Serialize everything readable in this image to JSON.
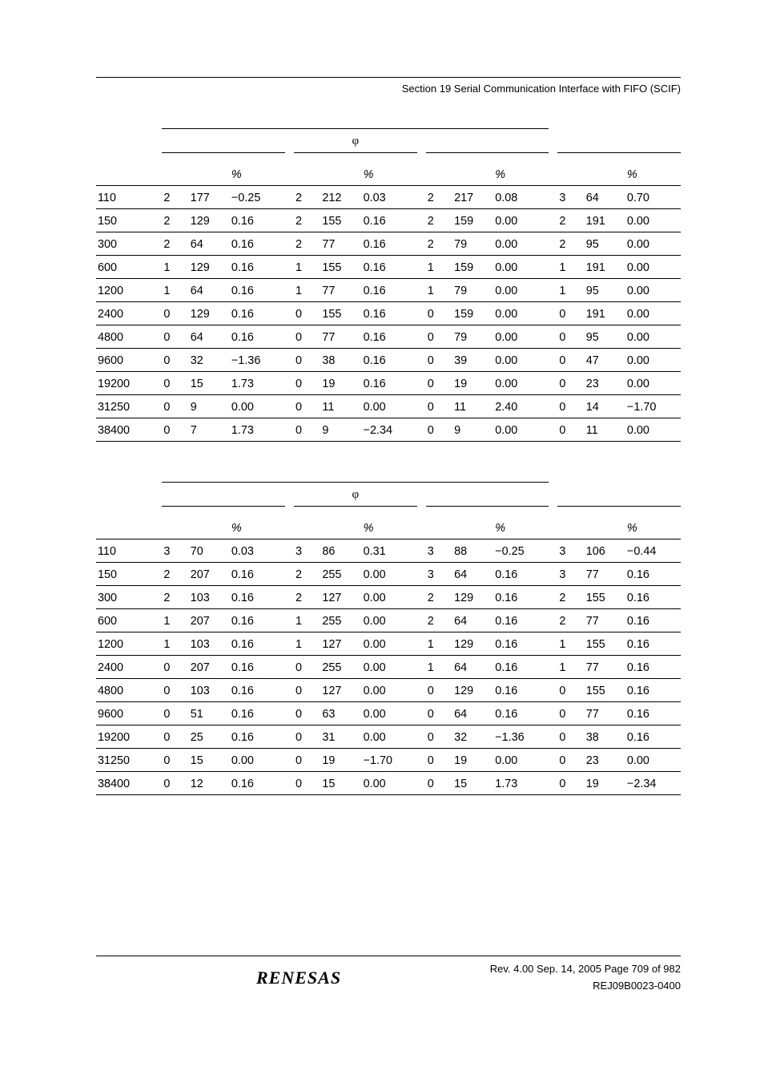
{
  "header": {
    "section_text": "Section 19   Serial Communication Interface with FIFO (SCIF)"
  },
  "symbols": {
    "phi": "φ",
    "percent": "%"
  },
  "table1": {
    "rows": [
      {
        "bit": "110",
        "n1": "2",
        "N1": "177",
        "p1": "−0.25",
        "n2": "2",
        "N2": "212",
        "p2": "0.03",
        "n3": "2",
        "N3": "217",
        "p3": "0.08",
        "n4": "3",
        "N4": "64",
        "p4": "0.70"
      },
      {
        "bit": "150",
        "n1": "2",
        "N1": "129",
        "p1": "0.16",
        "n2": "2",
        "N2": "155",
        "p2": "0.16",
        "n3": "2",
        "N3": "159",
        "p3": "0.00",
        "n4": "2",
        "N4": "191",
        "p4": "0.00"
      },
      {
        "bit": "300",
        "n1": "2",
        "N1": "64",
        "p1": "0.16",
        "n2": "2",
        "N2": "77",
        "p2": "0.16",
        "n3": "2",
        "N3": "79",
        "p3": "0.00",
        "n4": "2",
        "N4": "95",
        "p4": "0.00"
      },
      {
        "bit": "600",
        "n1": "1",
        "N1": "129",
        "p1": "0.16",
        "n2": "1",
        "N2": "155",
        "p2": "0.16",
        "n3": "1",
        "N3": "159",
        "p3": "0.00",
        "n4": "1",
        "N4": "191",
        "p4": "0.00"
      },
      {
        "bit": "1200",
        "n1": "1",
        "N1": "64",
        "p1": "0.16",
        "n2": "1",
        "N2": "77",
        "p2": "0.16",
        "n3": "1",
        "N3": "79",
        "p3": "0.00",
        "n4": "1",
        "N4": "95",
        "p4": "0.00"
      },
      {
        "bit": "2400",
        "n1": "0",
        "N1": "129",
        "p1": "0.16",
        "n2": "0",
        "N2": "155",
        "p2": "0.16",
        "n3": "0",
        "N3": "159",
        "p3": "0.00",
        "n4": "0",
        "N4": "191",
        "p4": "0.00"
      },
      {
        "bit": "4800",
        "n1": "0",
        "N1": "64",
        "p1": "0.16",
        "n2": "0",
        "N2": "77",
        "p2": "0.16",
        "n3": "0",
        "N3": "79",
        "p3": "0.00",
        "n4": "0",
        "N4": "95",
        "p4": "0.00"
      },
      {
        "bit": "9600",
        "n1": "0",
        "N1": "32",
        "p1": "−1.36",
        "n2": "0",
        "N2": "38",
        "p2": "0.16",
        "n3": "0",
        "N3": "39",
        "p3": "0.00",
        "n4": "0",
        "N4": "47",
        "p4": "0.00"
      },
      {
        "bit": "19200",
        "n1": "0",
        "N1": "15",
        "p1": "1.73",
        "n2": "0",
        "N2": "19",
        "p2": "0.16",
        "n3": "0",
        "N3": "19",
        "p3": "0.00",
        "n4": "0",
        "N4": "23",
        "p4": "0.00"
      },
      {
        "bit": "31250",
        "n1": "0",
        "N1": "9",
        "p1": "0.00",
        "n2": "0",
        "N2": "11",
        "p2": "0.00",
        "n3": "0",
        "N3": "11",
        "p3": "2.40",
        "n4": "0",
        "N4": "14",
        "p4": "−1.70"
      },
      {
        "bit": "38400",
        "n1": "0",
        "N1": "7",
        "p1": "1.73",
        "n2": "0",
        "N2": "9",
        "p2": "−2.34",
        "n3": "0",
        "N3": "9",
        "p3": "0.00",
        "n4": "0",
        "N4": "11",
        "p4": "0.00"
      }
    ]
  },
  "table2": {
    "rows": [
      {
        "bit": "110",
        "n1": "3",
        "N1": "70",
        "p1": "0.03",
        "n2": "3",
        "N2": "86",
        "p2": "0.31",
        "n3": "3",
        "N3": "88",
        "p3": "−0.25",
        "n4": "3",
        "N4": "106",
        "p4": "−0.44"
      },
      {
        "bit": "150",
        "n1": "2",
        "N1": "207",
        "p1": "0.16",
        "n2": "2",
        "N2": "255",
        "p2": "0.00",
        "n3": "3",
        "N3": "64",
        "p3": "0.16",
        "n4": "3",
        "N4": "77",
        "p4": "0.16"
      },
      {
        "bit": "300",
        "n1": "2",
        "N1": "103",
        "p1": "0.16",
        "n2": "2",
        "N2": "127",
        "p2": "0.00",
        "n3": "2",
        "N3": "129",
        "p3": "0.16",
        "n4": "2",
        "N4": "155",
        "p4": "0.16"
      },
      {
        "bit": "600",
        "n1": "1",
        "N1": "207",
        "p1": "0.16",
        "n2": "1",
        "N2": "255",
        "p2": "0.00",
        "n3": "2",
        "N3": "64",
        "p3": "0.16",
        "n4": "2",
        "N4": "77",
        "p4": "0.16"
      },
      {
        "bit": "1200",
        "n1": "1",
        "N1": "103",
        "p1": "0.16",
        "n2": "1",
        "N2": "127",
        "p2": "0.00",
        "n3": "1",
        "N3": "129",
        "p3": "0.16",
        "n4": "1",
        "N4": "155",
        "p4": "0.16"
      },
      {
        "bit": "2400",
        "n1": "0",
        "N1": "207",
        "p1": "0.16",
        "n2": "0",
        "N2": "255",
        "p2": "0.00",
        "n3": "1",
        "N3": "64",
        "p3": "0.16",
        "n4": "1",
        "N4": "77",
        "p4": "0.16"
      },
      {
        "bit": "4800",
        "n1": "0",
        "N1": "103",
        "p1": "0.16",
        "n2": "0",
        "N2": "127",
        "p2": "0.00",
        "n3": "0",
        "N3": "129",
        "p3": "0.16",
        "n4": "0",
        "N4": "155",
        "p4": "0.16"
      },
      {
        "bit": "9600",
        "n1": "0",
        "N1": "51",
        "p1": "0.16",
        "n2": "0",
        "N2": "63",
        "p2": "0.00",
        "n3": "0",
        "N3": "64",
        "p3": "0.16",
        "n4": "0",
        "N4": "77",
        "p4": "0.16"
      },
      {
        "bit": "19200",
        "n1": "0",
        "N1": "25",
        "p1": "0.16",
        "n2": "0",
        "N2": "31",
        "p2": "0.00",
        "n3": "0",
        "N3": "32",
        "p3": "−1.36",
        "n4": "0",
        "N4": "38",
        "p4": "0.16"
      },
      {
        "bit": "31250",
        "n1": "0",
        "N1": "15",
        "p1": "0.00",
        "n2": "0",
        "N2": "19",
        "p2": "−1.70",
        "n3": "0",
        "N3": "19",
        "p3": "0.00",
        "n4": "0",
        "N4": "23",
        "p4": "0.00"
      },
      {
        "bit": "38400",
        "n1": "0",
        "N1": "12",
        "p1": "0.16",
        "n2": "0",
        "N2": "15",
        "p2": "0.00",
        "n3": "0",
        "N3": "15",
        "p3": "1.73",
        "n4": "0",
        "N4": "19",
        "p4": "−2.34"
      }
    ]
  },
  "footer": {
    "logo_text": "RENESAS",
    "rev_text": "Rev. 4.00  Sep. 14, 2005  Page 709 of 982",
    "doc_id": "REJ09B0023-0400"
  }
}
